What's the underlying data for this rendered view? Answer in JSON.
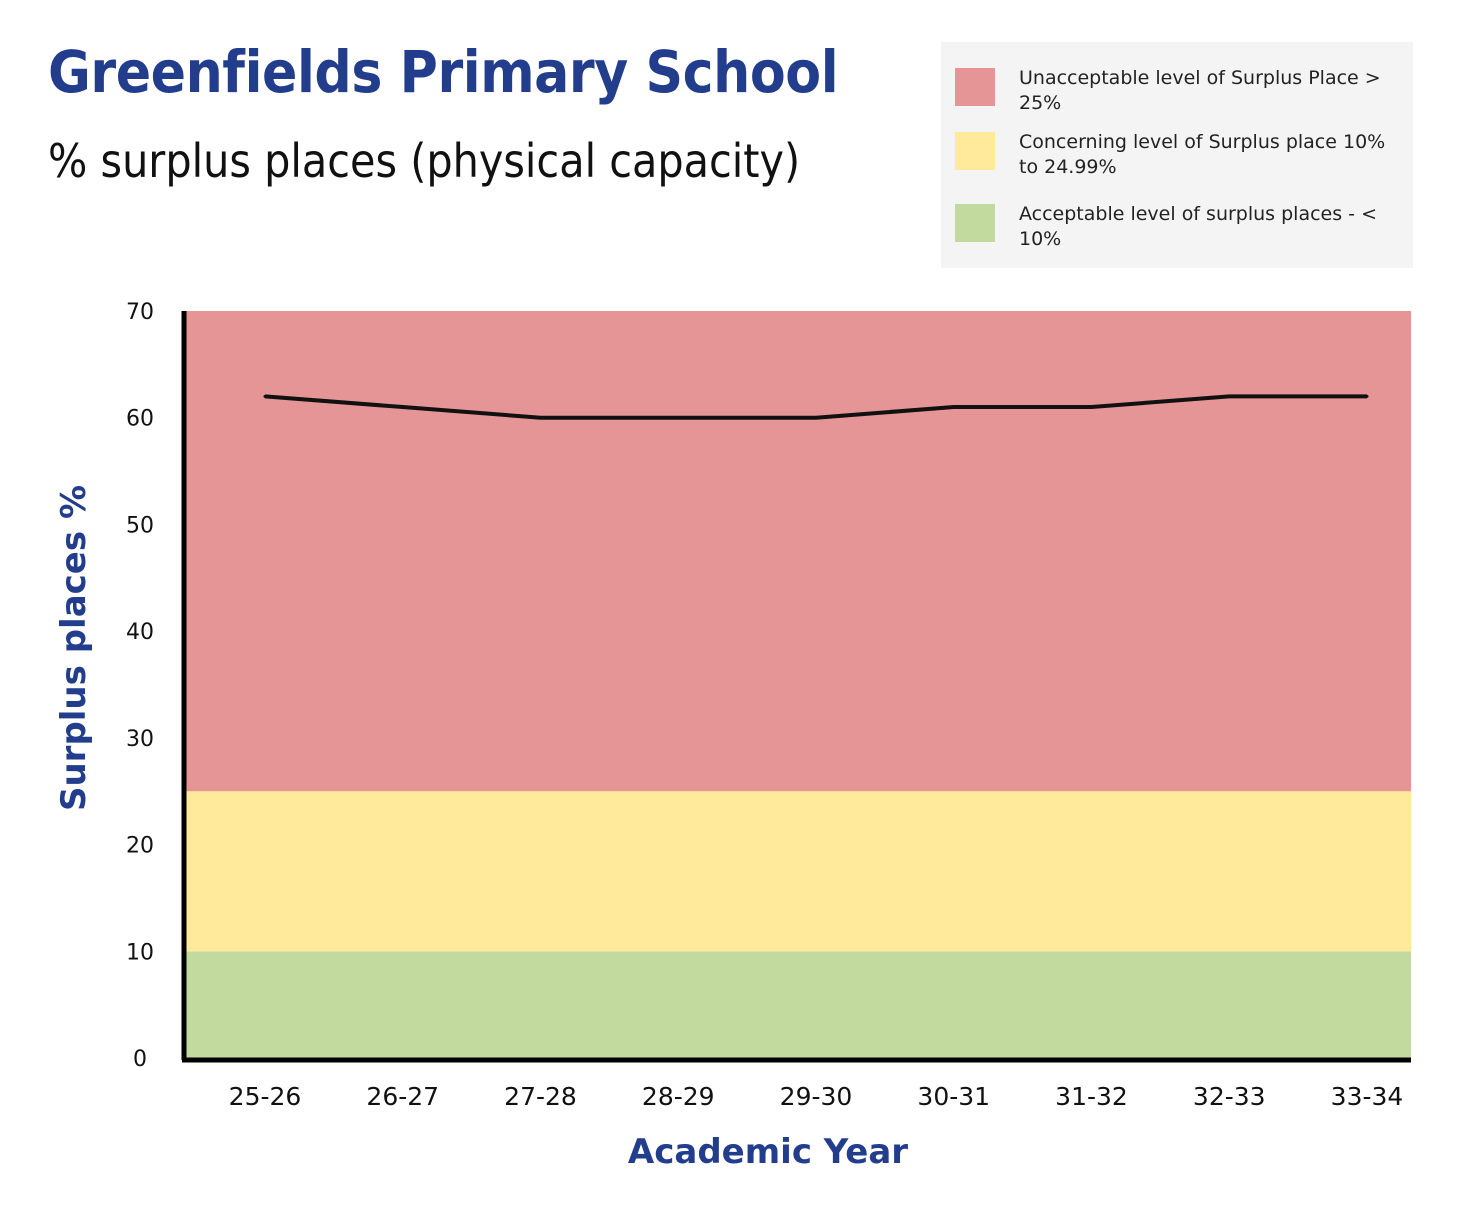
{
  "header": {
    "title": "Greenfields Primary School",
    "subtitle": "% surplus places (physical capacity)"
  },
  "legend": {
    "items": [
      {
        "label": "Unacceptable level of Surplus Place > 25%",
        "color": "#e59595"
      },
      {
        "label": "Concerning level of Surplus place 10% to 24.99%",
        "color": "#feea9a"
      },
      {
        "label": "Acceptable level of surplus places - < 10%",
        "color": "#c2da9e"
      }
    ]
  },
  "chart_data": {
    "type": "line",
    "title": "Greenfields Primary School",
    "subtitle": "% surplus places (physical capacity)",
    "xlabel": "Academic Year",
    "ylabel": "Surplus places %",
    "categories": [
      "25-26",
      "26-27",
      "27-28",
      "28-29",
      "29-30",
      "30-31",
      "31-32",
      "32-33",
      "33-34"
    ],
    "series": [
      {
        "name": "Surplus places %",
        "values": [
          62,
          61,
          60,
          60,
          60,
          61,
          61,
          62,
          62
        ],
        "color": "#111111"
      }
    ],
    "ylim": [
      0,
      70
    ],
    "yticks": [
      0,
      10,
      20,
      30,
      40,
      50,
      60,
      70
    ],
    "bands": [
      {
        "name": "Acceptable",
        "from": 0,
        "to": 10,
        "color": "#c2da9e"
      },
      {
        "name": "Concerning",
        "from": 10,
        "to": 25,
        "color": "#feea9a"
      },
      {
        "name": "Unacceptable",
        "from": 25,
        "to": 70,
        "color": "#e59595"
      }
    ],
    "grid": false,
    "legend_position": "top-right"
  }
}
